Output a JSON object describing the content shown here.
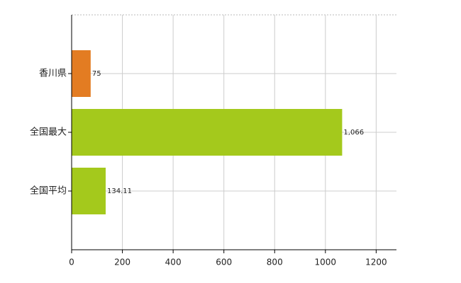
{
  "chart_data": {
    "type": "hbar",
    "categories": [
      "香川県",
      "全国最大",
      "全国平均"
    ],
    "values": [
      75,
      1066,
      134.11
    ],
    "value_labels": [
      "75",
      "1,066",
      "134.11"
    ],
    "colors": [
      "#e37c22",
      "#a4c91c",
      "#a4c91c"
    ],
    "xlim": [
      0,
      1280
    ],
    "xticks": [
      0,
      200,
      400,
      600,
      800,
      1000,
      1200
    ],
    "grid": true
  }
}
